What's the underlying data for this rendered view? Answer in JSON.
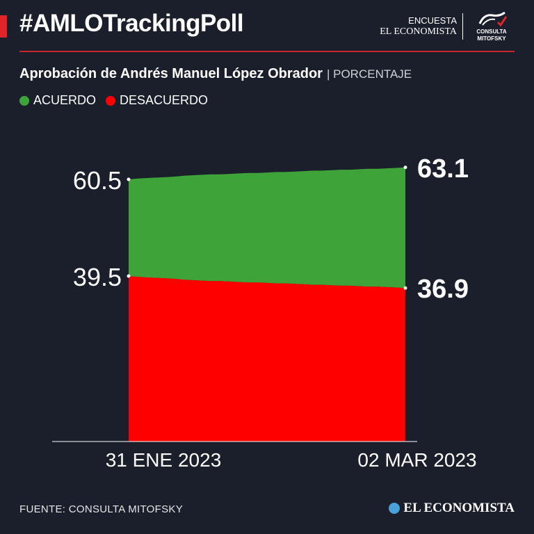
{
  "header": {
    "hashtag": "#AMLOTrackingPoll",
    "brand_line1": "ENCUESTA",
    "brand_line2": "EL ECONOMISTA",
    "brand_partner": "CONSULTA MITOFSKY"
  },
  "subtitle": {
    "main": "Aprobación de Andrés Manuel López Obrador",
    "unit": "| PORCENTAJE"
  },
  "legend": [
    {
      "label": "ACUERDO",
      "color": "#3ea43a"
    },
    {
      "label": "DESACUERDO",
      "color": "#ff0000"
    }
  ],
  "chart_data": {
    "type": "area",
    "x_start_label": "31   ENE 2023",
    "x_end_label": "02 MAR 2023",
    "ylim": [
      0,
      100
    ],
    "series": [
      {
        "name": "ACUERDO",
        "color": "#3ea43a",
        "values": [
          60.5,
          60.7,
          60.8,
          60.9,
          61.0,
          61.1,
          61.3,
          61.4,
          61.5,
          61.6,
          61.6,
          61.7,
          61.8,
          61.9,
          61.9,
          62.0,
          62.1,
          62.1,
          62.2,
          62.3,
          62.4,
          62.4,
          62.5,
          62.6,
          62.6,
          62.7,
          62.8,
          62.8,
          62.9,
          63.0,
          63.1
        ]
      },
      {
        "name": "DESACUERDO",
        "color": "#ff0000",
        "values": [
          39.5,
          39.3,
          39.2,
          39.1,
          39.0,
          38.9,
          38.7,
          38.6,
          38.5,
          38.4,
          38.4,
          38.3,
          38.2,
          38.1,
          38.1,
          38.0,
          37.9,
          37.9,
          37.8,
          37.7,
          37.6,
          37.6,
          37.5,
          37.4,
          37.4,
          37.3,
          37.2,
          37.2,
          37.1,
          37.0,
          36.9
        ]
      }
    ],
    "labels": {
      "start_top": "60.5",
      "start_bottom": "39.5",
      "end_top": "63.1",
      "end_bottom": "36.9"
    }
  },
  "footer": {
    "source": "FUENTE: CONSULTA MITOFSKY",
    "logo": "EL ECONOMISTA"
  }
}
